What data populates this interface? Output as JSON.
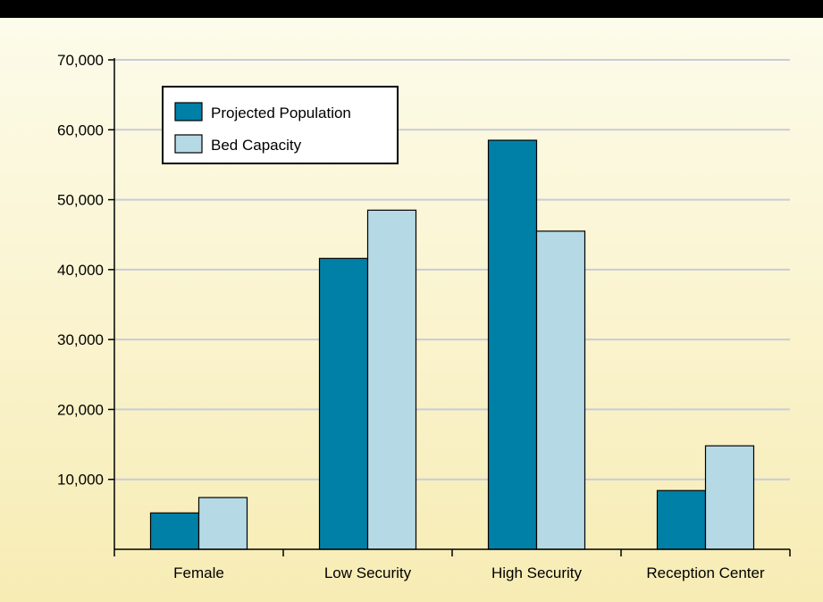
{
  "colors": {
    "header_bar": "#000000",
    "background_top": "#fdfcec",
    "background_bottom": "#f7ecb4",
    "gridline": "#c8cbd8",
    "axis": "#000000",
    "bar_outline": "#000000"
  },
  "chart_data": {
    "type": "bar",
    "title": "",
    "xlabel": "",
    "ylabel": "",
    "categories": [
      "Female",
      "Low Security",
      "High Security",
      "Reception Center"
    ],
    "series": [
      {
        "name": "Projected Population",
        "color": "#0080a6",
        "values": [
          5200,
          41600,
          58500,
          8400
        ]
      },
      {
        "name": "Bed Capacity",
        "color": "#b5dae6",
        "values": [
          7400,
          48500,
          45500,
          14800
        ]
      }
    ],
    "ylim": [
      0,
      70000
    ],
    "yticks": [
      10000,
      20000,
      30000,
      40000,
      50000,
      60000,
      70000
    ],
    "ytick_labels": [
      "10,000",
      "20,000",
      "30,000",
      "40,000",
      "50,000",
      "60,000",
      "70,000"
    ],
    "grid": true,
    "legend_position": "top-left"
  }
}
